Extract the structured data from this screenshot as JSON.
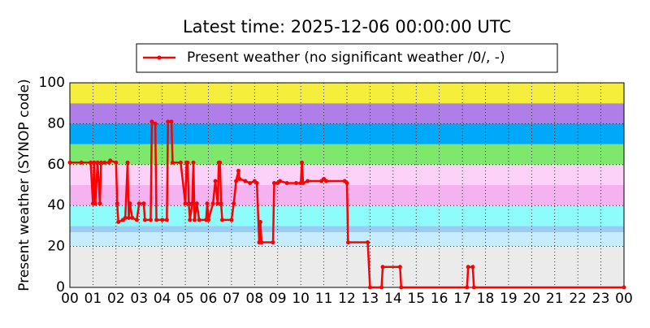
{
  "chart_data": {
    "type": "line",
    "title": "Latest time: 2025-12-06 00:00:00 UTC",
    "y_label": "Present weather (SYNOP code)",
    "xlim": [
      0,
      24
    ],
    "ylim": [
      0,
      100
    ],
    "xticks": [
      {
        "value": 0,
        "label": "00"
      },
      {
        "value": 1,
        "label": "01"
      },
      {
        "value": 2,
        "label": "02"
      },
      {
        "value": 3,
        "label": "03"
      },
      {
        "value": 4,
        "label": "04"
      },
      {
        "value": 5,
        "label": "05"
      },
      {
        "value": 6,
        "label": "06"
      },
      {
        "value": 7,
        "label": "07"
      },
      {
        "value": 8,
        "label": "08"
      },
      {
        "value": 9,
        "label": "09"
      },
      {
        "value": 10,
        "label": "10"
      },
      {
        "value": 11,
        "label": "11"
      },
      {
        "value": 12,
        "label": "12"
      },
      {
        "value": 13,
        "label": "13"
      },
      {
        "value": 14,
        "label": "14"
      },
      {
        "value": 15,
        "label": "15"
      },
      {
        "value": 16,
        "label": "16"
      },
      {
        "value": 17,
        "label": "17"
      },
      {
        "value": 18,
        "label": "18"
      },
      {
        "value": 19,
        "label": "19"
      },
      {
        "value": 20,
        "label": "20"
      },
      {
        "value": 21,
        "label": "21"
      },
      {
        "value": 22,
        "label": "22"
      },
      {
        "value": 23,
        "label": "23"
      },
      {
        "value": 24,
        "label": "00"
      }
    ],
    "yticks": [
      0,
      20,
      40,
      60,
      80,
      100
    ],
    "grid": true,
    "bands": [
      {
        "from": 0,
        "to": 20,
        "color": "#ebebeb"
      },
      {
        "from": 20,
        "to": 27,
        "color": "#c8ecff"
      },
      {
        "from": 27,
        "to": 30,
        "color": "#99ccf5"
      },
      {
        "from": 30,
        "to": 40,
        "color": "#8ffcfc"
      },
      {
        "from": 40,
        "to": 50,
        "color": "#f5b2f0"
      },
      {
        "from": 50,
        "to": 60,
        "color": "#fcd2f8"
      },
      {
        "from": 60,
        "to": 70,
        "color": "#7ee86c"
      },
      {
        "from": 70,
        "to": 80,
        "color": "#00a8fa"
      },
      {
        "from": 80,
        "to": 90,
        "color": "#b07ee8"
      },
      {
        "from": 90,
        "to": 100,
        "color": "#f5ef3c"
      }
    ],
    "legend": "top",
    "series": [
      {
        "name": "Present weather (no significant weather /0/, -)",
        "color": "#ff0000",
        "x": [
          0.0,
          0.5,
          0.9,
          1.0,
          1.05,
          1.1,
          1.2,
          1.3,
          1.35,
          1.5,
          1.7,
          1.75,
          2.0,
          2.05,
          2.1,
          2.3,
          2.4,
          2.5,
          2.55,
          2.6,
          2.7,
          2.9,
          3.0,
          3.2,
          3.25,
          3.5,
          3.55,
          3.7,
          3.75,
          4.0,
          4.2,
          4.25,
          4.4,
          4.45,
          4.8,
          5.0,
          5.05,
          5.1,
          5.15,
          5.2,
          5.3,
          5.35,
          5.4,
          5.5,
          5.6,
          5.9,
          5.95,
          6.0,
          6.2,
          6.3,
          6.4,
          6.45,
          6.5,
          6.55,
          6.6,
          7.0,
          7.1,
          7.2,
          7.3,
          7.35,
          7.6,
          7.8,
          8.0,
          8.1,
          8.2,
          8.25,
          8.3,
          8.8,
          8.85,
          9.0,
          9.1,
          9.4,
          9.8,
          10.0,
          10.05,
          10.1,
          10.3,
          10.9,
          11.0,
          11.1,
          11.9,
          12.0,
          12.05,
          12.9,
          13.0,
          13.5,
          13.55,
          14.3,
          14.35,
          17.2,
          17.25,
          17.45,
          17.5,
          24.0
        ],
        "values": [
          61,
          61,
          61,
          41,
          61,
          41,
          61,
          41,
          61,
          61,
          61,
          62,
          61,
          41,
          32,
          33,
          34,
          61,
          34,
          41,
          34,
          33,
          41,
          41,
          33,
          33,
          81,
          80,
          33,
          33,
          33,
          81,
          81,
          61,
          61,
          41,
          61,
          61,
          41,
          33,
          41,
          61,
          33,
          41,
          33,
          33,
          41,
          33,
          41,
          52,
          41,
          61,
          61,
          41,
          33,
          33,
          41,
          52,
          57,
          53,
          52,
          51,
          52,
          51,
          22,
          32,
          22,
          22,
          51,
          51,
          52,
          51,
          51,
          51,
          61,
          51,
          52,
          52,
          53,
          52,
          52,
          51,
          22,
          22,
          0,
          0,
          10,
          10,
          0,
          0,
          10,
          10,
          0,
          0
        ]
      }
    ]
  }
}
